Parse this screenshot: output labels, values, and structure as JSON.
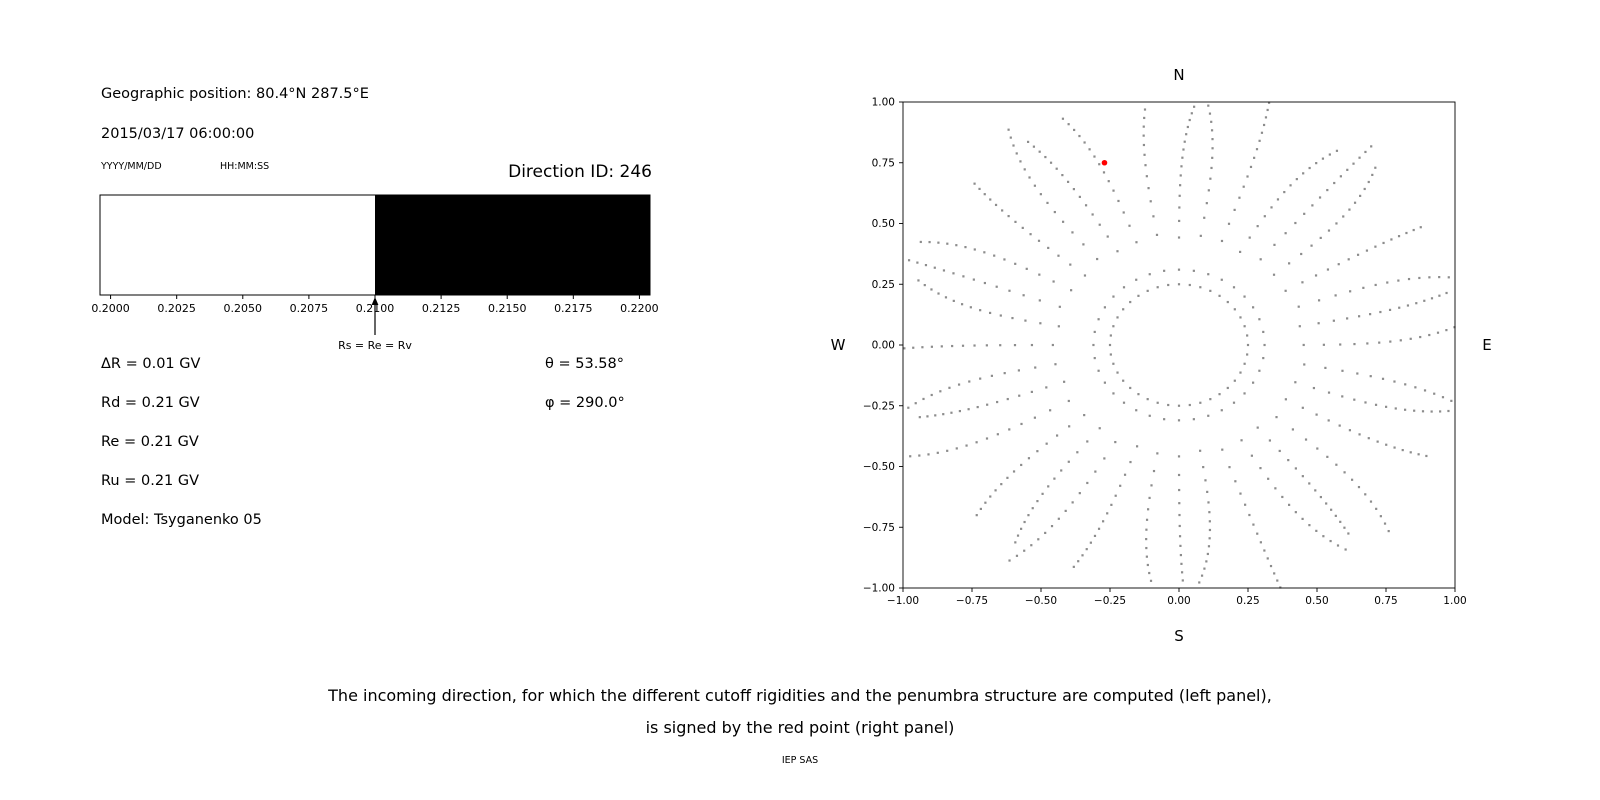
{
  "header": {
    "geographic_position": "Geographic position: 80.4°N 287.5°E",
    "datetime": "2015/03/17 06:00:00",
    "date_format_label": "YYYY/MM/DD",
    "time_format_label": "HH:MM:SS",
    "direction_id": "Direction ID: 246"
  },
  "left_panel": {
    "rigidity_lines": [
      "ΔR = 0.01 GV",
      "Rd = 0.21 GV",
      "Re = 0.21 GV",
      "Ru = 0.21 GV",
      "Model: Tsyganenko 05"
    ],
    "theta": "θ = 53.58°",
    "phi": "φ = 290.0°"
  },
  "caption": {
    "line1": "The incoming direction, for which the different cutoff rigidities and the penumbra structure are computed (left panel),",
    "line2": "is signed by the red point (right panel)",
    "credit": "IEP SAS"
  },
  "chart_data": [
    {
      "id": "penumbra",
      "type": "bar",
      "title": "",
      "xlabel": "",
      "ylabel": "",
      "xlim": [
        0.1996,
        0.2204
      ],
      "xticks": [
        0.2,
        0.2025,
        0.205,
        0.2075,
        0.21,
        0.2125,
        0.215,
        0.2175,
        0.22
      ],
      "xtick_labels": [
        "0.2000",
        "0.2025",
        "0.2050",
        "0.2075",
        "0.2100",
        "0.2125",
        "0.2150",
        "0.2175",
        "0.2200"
      ],
      "segments": [
        {
          "from": 0.1996,
          "to": 0.21,
          "color": "#ffffff"
        },
        {
          "from": 0.21,
          "to": 0.2204,
          "color": "#000000"
        }
      ],
      "frame_color": "#000000",
      "annotation": {
        "x": 0.21,
        "label": "Rs = Re = Rv"
      }
    },
    {
      "id": "direction_map",
      "type": "scatter",
      "title": "",
      "xlim": [
        -1,
        1
      ],
      "ylim": [
        -1,
        1
      ],
      "xticks": [
        -1.0,
        -0.75,
        -0.5,
        -0.25,
        0.0,
        0.25,
        0.5,
        0.75,
        1.0
      ],
      "yticks": [
        -1.0,
        -0.75,
        -0.5,
        -0.25,
        0.0,
        0.25,
        0.5,
        0.75,
        1.0
      ],
      "xtick_labels": [
        "−1.00",
        "−0.75",
        "−0.50",
        "−0.25",
        "0.00",
        "0.25",
        "0.50",
        "0.75",
        "1.00"
      ],
      "ytick_labels": [
        "−1.00",
        "−0.75",
        "−0.50",
        "−0.25",
        "0.00",
        "0.25",
        "0.50",
        "0.75",
        "1.00"
      ],
      "compass": {
        "top": "N",
        "bottom": "S",
        "left": "W",
        "right": "E"
      },
      "grid_point_color": "#8c8c8c",
      "highlight_point": {
        "x": -0.27,
        "y": 0.75,
        "color": "#ff0000"
      },
      "pattern": {
        "ring_radius": 0.25,
        "ring_points": 40,
        "spokes": 36,
        "spoke_r_min": 0.31,
        "spoke_r_max": 1.08,
        "dots_per_spoke": 16,
        "density_power": 0.6,
        "curvature": 0.1
      }
    }
  ]
}
